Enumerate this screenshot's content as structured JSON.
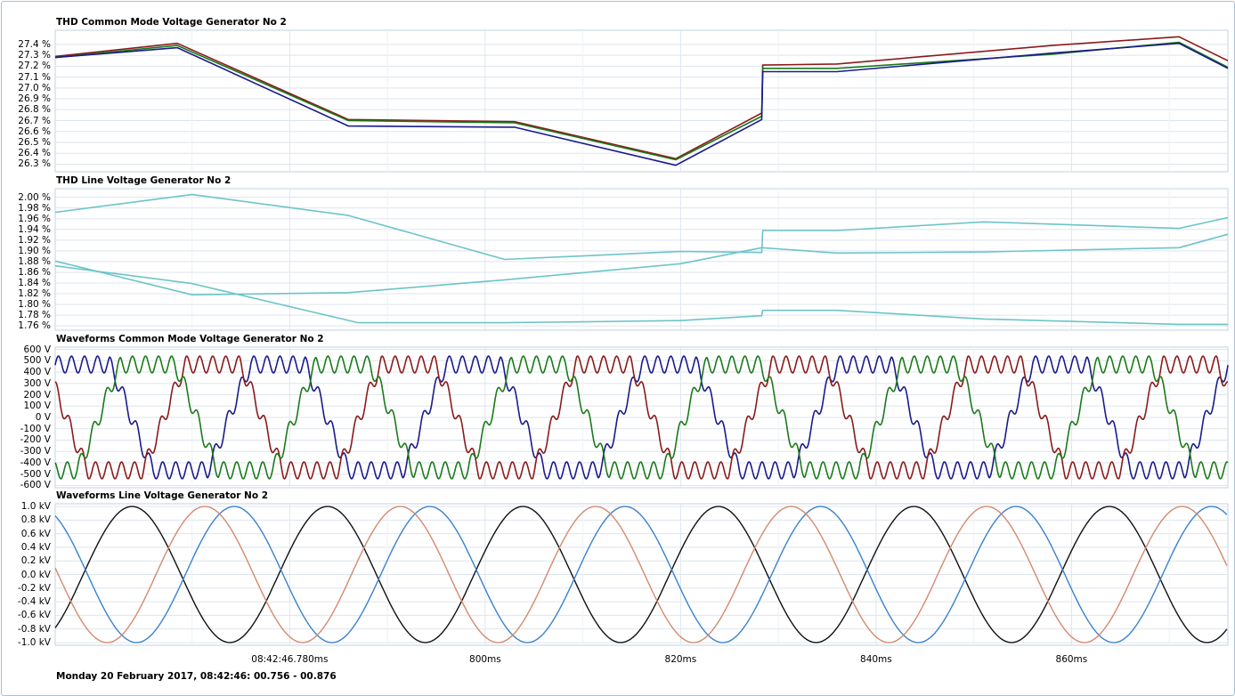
{
  "x_axis": {
    "tick_labels": [
      {
        "t": 780,
        "label": "08:42:46.780ms"
      },
      {
        "t": 800,
        "label": "800ms"
      },
      {
        "t": 820,
        "label": "820ms"
      },
      {
        "t": 840,
        "label": "840ms"
      },
      {
        "t": 860,
        "label": "860ms"
      }
    ],
    "range_ms": [
      756,
      876
    ]
  },
  "footer": {
    "date_range": "Monday 20 February 2017, 08:42:46: 00.756 - 00.876"
  },
  "colors": {
    "background": "#ffffff",
    "grid": "#dde5ee",
    "plot_border": "#c5d2e0",
    "cm_red": "#8b1a1a",
    "cm_blue": "#1a1a8c",
    "cm_green": "#1a7a1a",
    "thd_line": "#6cc4c8",
    "lv_black": "#111111",
    "lv_blue": "#3a82d0",
    "lv_orange": "#d48a6c"
  },
  "chart_data": [
    {
      "type": "line",
      "title": "THD Common Mode Voltage Generator No 2",
      "ylabel": "",
      "ylim": [
        26.23,
        27.53
      ],
      "y_tick_labels": [
        "27.4 %",
        "27.3 %",
        "27.2 %",
        "27.1 %",
        "27.0 %",
        "26.9 %",
        "26.8 %",
        "26.7 %",
        "26.6 %",
        "26.5 %",
        "26.4 %",
        "26.3 %"
      ],
      "y_tick_values": [
        27.4,
        27.3,
        27.2,
        27.1,
        27.0,
        26.9,
        26.8,
        26.7,
        26.6,
        26.5,
        26.4,
        26.3
      ],
      "grid": true,
      "series": [
        {
          "color": "#8b1a1a",
          "x": [
            756,
            768.5,
            786,
            803,
            819.5,
            828.3,
            828.4,
            836,
            858,
            871,
            876
          ],
          "y": [
            27.29,
            27.41,
            26.71,
            26.69,
            26.35,
            26.77,
            27.21,
            27.22,
            27.39,
            27.47,
            27.25
          ]
        },
        {
          "color": "#1a7a1a",
          "x": [
            756,
            768.5,
            786,
            803,
            819.5,
            828.3,
            828.4,
            836,
            858,
            871,
            876
          ],
          "y": [
            27.28,
            27.39,
            26.7,
            26.68,
            26.34,
            26.74,
            27.18,
            27.18,
            27.31,
            27.42,
            27.19
          ]
        },
        {
          "color": "#1a1a8c",
          "x": [
            756,
            768.5,
            786,
            803,
            819.5,
            828.3,
            828.4,
            836,
            858,
            871,
            876
          ],
          "y": [
            27.28,
            27.37,
            26.65,
            26.64,
            26.29,
            26.71,
            27.15,
            27.15,
            27.32,
            27.41,
            27.18
          ]
        }
      ]
    },
    {
      "type": "line",
      "title": "THD Line Voltage Generator No 2",
      "ylabel": "",
      "ylim": [
        1.752,
        2.016
      ],
      "y_tick_labels": [
        "2.00 %",
        "1.98 %",
        "1.96 %",
        "1.94 %",
        "1.92 %",
        "1.90 %",
        "1.88 %",
        "1.86 %",
        "1.84 %",
        "1.82 %",
        "1.80 %",
        "1.78 %",
        "1.76 %"
      ],
      "y_tick_values": [
        2.0,
        1.98,
        1.96,
        1.94,
        1.92,
        1.9,
        1.88,
        1.86,
        1.84,
        1.82,
        1.8,
        1.78,
        1.76
      ],
      "grid": true,
      "series": [
        {
          "color": "#6cc4c8",
          "x": [
            756,
            770,
            786,
            802,
            820,
            828.3,
            828.4,
            836,
            851,
            871,
            876
          ],
          "y": [
            1.972,
            2.005,
            1.966,
            1.884,
            1.899,
            1.897,
            1.938,
            1.938,
            1.954,
            1.942,
            1.962
          ]
        },
        {
          "color": "#6cc4c8",
          "x": [
            756,
            770,
            786,
            802,
            820,
            828.3,
            836,
            851,
            871,
            876
          ],
          "y": [
            1.881,
            1.818,
            1.822,
            1.846,
            1.876,
            1.906,
            1.896,
            1.898,
            1.906,
            1.931
          ]
        },
        {
          "color": "#6cc4c8",
          "x": [
            756,
            770,
            787,
            802,
            820,
            828.3,
            828.4,
            836,
            851,
            871,
            876
          ],
          "y": [
            1.872,
            1.839,
            1.766,
            1.766,
            1.77,
            1.779,
            1.789,
            1.789,
            1.773,
            1.763,
            1.763
          ]
        }
      ]
    },
    {
      "type": "line",
      "title": "Waveforms Common Mode Voltage Generator No 2",
      "ylabel": "",
      "ylim": [
        -620,
        620
      ],
      "y_tick_labels": [
        "600 V",
        "500 V",
        "400 V",
        "300 V",
        "200 V",
        "100 V",
        "0 V",
        "-100 V",
        "-200 V",
        "-300 V",
        "-400 V",
        "-500 V",
        "-600 V"
      ],
      "y_tick_values": [
        600,
        500,
        400,
        300,
        200,
        100,
        0,
        -100,
        -200,
        -300,
        -400,
        -500,
        -600
      ],
      "grid": true,
      "series": [
        {
          "color": "#1a1a8c",
          "waveform": "trapezoidal 50 Hz with ~750 Hz ripple",
          "peak_v": 530
        },
        {
          "color": "#8b1a1a",
          "waveform": "trapezoidal 50 Hz with ~750 Hz ripple",
          "peak_v": 530
        },
        {
          "color": "#1a7a1a",
          "waveform": "trapezoidal 50 Hz with ~750 Hz ripple",
          "peak_v": 530
        }
      ]
    },
    {
      "type": "line",
      "title": "Waveforms Line Voltage Generator No 2",
      "ylabel": "",
      "ylim": [
        -1.04,
        1.04
      ],
      "y_tick_labels": [
        "1.0 kV",
        "0.8 kV",
        "0.6 kV",
        "0.4 kV",
        "0.2 kV",
        "0.0 kV",
        "-0.2 kV",
        "-0.4 kV",
        "-0.6 kV",
        "-0.8 kV",
        "-1.0 kV"
      ],
      "y_tick_values": [
        1.0,
        0.8,
        0.6,
        0.4,
        0.2,
        0.0,
        -0.2,
        -0.4,
        -0.6,
        -0.8,
        -1.0
      ],
      "grid": true,
      "series": [
        {
          "color": "#111111",
          "waveform": "sine 50 Hz",
          "amplitude_kv": 1.0,
          "value_at_756ms_kv": -0.8
        },
        {
          "color": "#3a82d0",
          "waveform": "sine 50 Hz",
          "amplitude_kv": 1.0,
          "value_at_756ms_kv": 0.9
        },
        {
          "color": "#d48a6c",
          "waveform": "sine 50 Hz",
          "amplitude_kv": 1.0,
          "value_at_756ms_kv": -0.1
        }
      ]
    }
  ]
}
